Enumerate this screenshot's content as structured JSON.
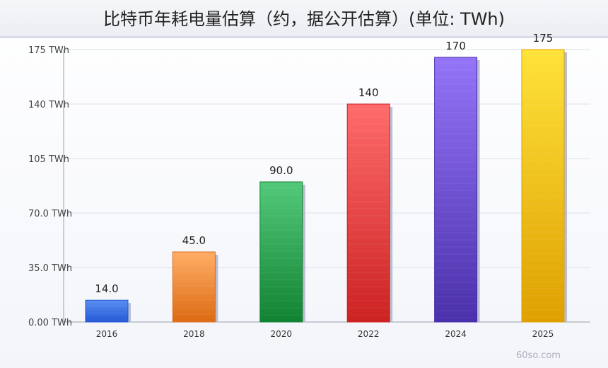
{
  "chart_data": {
    "type": "bar",
    "title": "比特币年耗电量估算（约，据公开估算）(单位: TWh)",
    "categories": [
      "2016",
      "2018",
      "2020",
      "2022",
      "2024",
      "2025"
    ],
    "values": [
      14.0,
      45.0,
      90.0,
      140,
      170,
      175
    ],
    "value_labels": [
      "14.0",
      "45.0",
      "90.0",
      "140",
      "170",
      "175"
    ],
    "y_ticks": [
      0,
      35,
      70,
      105,
      140,
      175
    ],
    "y_tick_labels": [
      "0.00 TWh",
      "35.0 TWh",
      "70.0 TWh",
      "105 TWh",
      "140 TWh",
      "175 TWh"
    ],
    "ylim": [
      0,
      175
    ],
    "grid": true,
    "legend": false,
    "colors": [
      [
        "#5b8ef0",
        "#2358d6"
      ],
      [
        "#ffad66",
        "#dc6a12"
      ],
      [
        "#52c97a",
        "#118232"
      ],
      [
        "#ff6b6b",
        "#cc2222"
      ],
      [
        "#9474f7",
        "#4a30aa"
      ],
      [
        "#ffe23a",
        "#dea000"
      ]
    ]
  },
  "watermark": "60so.com"
}
